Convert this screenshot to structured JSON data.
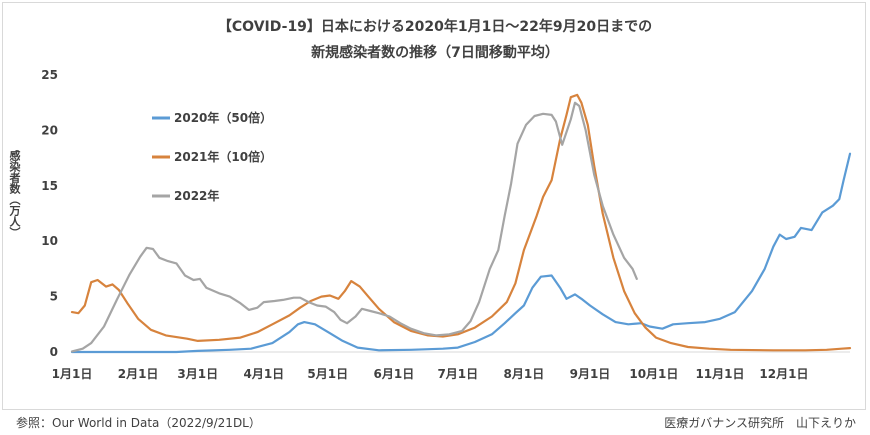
{
  "chart_data": {
    "type": "line",
    "title": "【COVID-19】日本における2020年1月1日～22年9月20日までの",
    "subtitle": "新規感染者数の推移（7日間移動平均）",
    "ylabel": "感染者数（万人）",
    "xlabel": "",
    "ylim": [
      0,
      25
    ],
    "yticks": [
      0,
      5,
      10,
      15,
      20,
      25
    ],
    "x_domain": [
      1,
      366
    ],
    "xticks": [
      {
        "label": "1月1日",
        "day": 1
      },
      {
        "label": "2月1日",
        "day": 32
      },
      {
        "label": "3月1日",
        "day": 60
      },
      {
        "label": "4月1日",
        "day": 91
      },
      {
        "label": "5月1日",
        "day": 121
      },
      {
        "label": "6月1日",
        "day": 152
      },
      {
        "label": "7月1日",
        "day": 182
      },
      {
        "label": "8月1日",
        "day": 213
      },
      {
        "label": "9月1日",
        "day": 244
      },
      {
        "label": "10月1日",
        "day": 274
      },
      {
        "label": "11月1日",
        "day": 305
      },
      {
        "label": "12月1日",
        "day": 335
      }
    ],
    "grid": false,
    "legend_position": "top-left",
    "series": [
      {
        "name": "2020年（50倍）",
        "color": "#5b9bd5",
        "points": [
          [
            1,
            0
          ],
          [
            30,
            0
          ],
          [
            50,
            0
          ],
          [
            60,
            0.1
          ],
          [
            75,
            0.2
          ],
          [
            85,
            0.3
          ],
          [
            95,
            0.8
          ],
          [
            103,
            1.8
          ],
          [
            107,
            2.5
          ],
          [
            110,
            2.7
          ],
          [
            115,
            2.5
          ],
          [
            122,
            1.7
          ],
          [
            128,
            1.0
          ],
          [
            135,
            0.4
          ],
          [
            145,
            0.15
          ],
          [
            160,
            0.2
          ],
          [
            175,
            0.3
          ],
          [
            182,
            0.4
          ],
          [
            190,
            0.9
          ],
          [
            198,
            1.6
          ],
          [
            204,
            2.6
          ],
          [
            209,
            3.5
          ],
          [
            213,
            4.2
          ],
          [
            217,
            5.8
          ],
          [
            221,
            6.8
          ],
          [
            226,
            6.9
          ],
          [
            230,
            5.8
          ],
          [
            233,
            4.8
          ],
          [
            237,
            5.2
          ],
          [
            240,
            4.8
          ],
          [
            244,
            4.2
          ],
          [
            250,
            3.4
          ],
          [
            256,
            2.7
          ],
          [
            262,
            2.5
          ],
          [
            268,
            2.6
          ],
          [
            272,
            2.3
          ],
          [
            278,
            2.1
          ],
          [
            283,
            2.5
          ],
          [
            290,
            2.6
          ],
          [
            298,
            2.7
          ],
          [
            305,
            3.0
          ],
          [
            312,
            3.6
          ],
          [
            320,
            5.5
          ],
          [
            326,
            7.5
          ],
          [
            330,
            9.5
          ],
          [
            333,
            10.6
          ],
          [
            336,
            10.2
          ],
          [
            340,
            10.4
          ],
          [
            343,
            11.2
          ],
          [
            348,
            11.0
          ],
          [
            353,
            12.6
          ],
          [
            358,
            13.2
          ],
          [
            361,
            13.8
          ],
          [
            363,
            15.5
          ],
          [
            366,
            17.9
          ]
        ]
      },
      {
        "name": "2021年（10倍）",
        "color": "#d7833d",
        "points": [
          [
            1,
            3.6
          ],
          [
            4,
            3.5
          ],
          [
            7,
            4.2
          ],
          [
            10,
            6.3
          ],
          [
            13,
            6.5
          ],
          [
            17,
            5.9
          ],
          [
            20,
            6.1
          ],
          [
            23,
            5.6
          ],
          [
            27,
            4.4
          ],
          [
            32,
            3.0
          ],
          [
            38,
            2.0
          ],
          [
            45,
            1.5
          ],
          [
            55,
            1.2
          ],
          [
            60,
            1.0
          ],
          [
            70,
            1.1
          ],
          [
            80,
            1.3
          ],
          [
            88,
            1.8
          ],
          [
            95,
            2.5
          ],
          [
            103,
            3.3
          ],
          [
            108,
            4.0
          ],
          [
            113,
            4.6
          ],
          [
            118,
            5.0
          ],
          [
            122,
            5.1
          ],
          [
            126,
            4.8
          ],
          [
            129,
            5.5
          ],
          [
            132,
            6.4
          ],
          [
            136,
            5.9
          ],
          [
            140,
            5.0
          ],
          [
            145,
            3.9
          ],
          [
            152,
            2.7
          ],
          [
            160,
            1.9
          ],
          [
            168,
            1.5
          ],
          [
            175,
            1.4
          ],
          [
            182,
            1.6
          ],
          [
            190,
            2.2
          ],
          [
            198,
            3.2
          ],
          [
            205,
            4.5
          ],
          [
            209,
            6.2
          ],
          [
            213,
            9.2
          ],
          [
            219,
            12.3
          ],
          [
            222,
            14.0
          ],
          [
            226,
            15.5
          ],
          [
            230,
            19.2
          ],
          [
            233,
            21.4
          ],
          [
            235,
            23.0
          ],
          [
            238,
            23.2
          ],
          [
            240,
            22.5
          ],
          [
            243,
            20.5
          ],
          [
            246,
            16.8
          ],
          [
            250,
            12.5
          ],
          [
            255,
            8.5
          ],
          [
            260,
            5.5
          ],
          [
            265,
            3.5
          ],
          [
            270,
            2.2
          ],
          [
            275,
            1.3
          ],
          [
            282,
            0.8
          ],
          [
            290,
            0.45
          ],
          [
            300,
            0.3
          ],
          [
            310,
            0.2
          ],
          [
            330,
            0.15
          ],
          [
            345,
            0.15
          ],
          [
            355,
            0.2
          ],
          [
            362,
            0.3
          ],
          [
            366,
            0.35
          ]
        ]
      },
      {
        "name": "2022年",
        "color": "#a5a5a5",
        "points": [
          [
            1,
            0.05
          ],
          [
            6,
            0.3
          ],
          [
            10,
            0.8
          ],
          [
            16,
            2.3
          ],
          [
            22,
            4.7
          ],
          [
            28,
            7.0
          ],
          [
            33,
            8.6
          ],
          [
            36,
            9.4
          ],
          [
            39,
            9.3
          ],
          [
            42,
            8.5
          ],
          [
            46,
            8.2
          ],
          [
            50,
            8.0
          ],
          [
            54,
            6.9
          ],
          [
            58,
            6.5
          ],
          [
            61,
            6.6
          ],
          [
            64,
            5.8
          ],
          [
            70,
            5.3
          ],
          [
            75,
            5.0
          ],
          [
            80,
            4.4
          ],
          [
            84,
            3.8
          ],
          [
            88,
            4.0
          ],
          [
            91,
            4.5
          ],
          [
            96,
            4.6
          ],
          [
            100,
            4.7
          ],
          [
            105,
            4.9
          ],
          [
            108,
            4.9
          ],
          [
            112,
            4.5
          ],
          [
            116,
            4.2
          ],
          [
            120,
            4.1
          ],
          [
            124,
            3.6
          ],
          [
            127,
            2.9
          ],
          [
            130,
            2.6
          ],
          [
            134,
            3.2
          ],
          [
            137,
            3.9
          ],
          [
            141,
            3.7
          ],
          [
            145,
            3.5
          ],
          [
            150,
            3.2
          ],
          [
            155,
            2.6
          ],
          [
            160,
            2.1
          ],
          [
            166,
            1.7
          ],
          [
            172,
            1.5
          ],
          [
            178,
            1.6
          ],
          [
            184,
            1.9
          ],
          [
            188,
            2.8
          ],
          [
            192,
            4.5
          ],
          [
            197,
            7.5
          ],
          [
            201,
            9.2
          ],
          [
            204,
            12.3
          ],
          [
            207,
            15.2
          ],
          [
            210,
            18.8
          ],
          [
            214,
            20.5
          ],
          [
            218,
            21.3
          ],
          [
            222,
            21.5
          ],
          [
            226,
            21.4
          ],
          [
            228,
            20.8
          ],
          [
            231,
            18.7
          ],
          [
            235,
            21.0
          ],
          [
            237,
            22.5
          ],
          [
            239,
            22.2
          ],
          [
            242,
            20.0
          ],
          [
            246,
            16.0
          ],
          [
            250,
            13.2
          ],
          [
            255,
            10.6
          ],
          [
            260,
            8.5
          ],
          [
            264,
            7.5
          ],
          [
            266,
            6.6
          ]
        ]
      }
    ]
  },
  "source_left": "参照：Our World in Data（2022/9/21DL）",
  "source_right": "医療ガバナンス研究所　山下えりか"
}
